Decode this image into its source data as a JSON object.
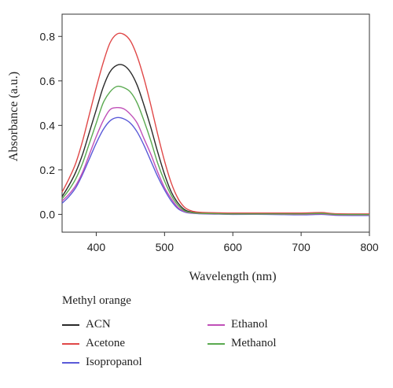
{
  "chart_data": {
    "type": "line",
    "title": "",
    "xlabel": "Wavelength (nm)",
    "ylabel": "Absorbance (a.u.)",
    "xlim": [
      350,
      800
    ],
    "ylim": [
      -0.08,
      0.9
    ],
    "xticks": [
      "400",
      "500",
      "600",
      "700",
      "800"
    ],
    "yticks": [
      "0.0",
      "0.2",
      "0.4",
      "0.6",
      "0.8"
    ],
    "grid": false,
    "legend": {
      "title": "Methyl orange",
      "placement": "bottom"
    },
    "x": [
      350,
      360,
      370,
      380,
      390,
      400,
      410,
      420,
      430,
      440,
      450,
      460,
      470,
      480,
      490,
      500,
      510,
      520,
      530,
      540,
      550,
      560,
      580,
      600,
      650,
      700,
      730,
      750,
      800
    ],
    "series": [
      {
        "name": "ACN",
        "color": "#2a2a2a",
        "values": [
          0.08,
          0.13,
          0.19,
          0.27,
          0.37,
          0.47,
          0.57,
          0.64,
          0.67,
          0.67,
          0.64,
          0.58,
          0.49,
          0.39,
          0.28,
          0.18,
          0.1,
          0.05,
          0.02,
          0.01,
          0.008,
          0.006,
          0.005,
          0.004,
          0.004,
          0.004,
          0.006,
          0.001,
          0.0
        ]
      },
      {
        "name": "Acetone",
        "color": "#e04848",
        "values": [
          0.1,
          0.16,
          0.23,
          0.33,
          0.45,
          0.57,
          0.68,
          0.77,
          0.81,
          0.81,
          0.78,
          0.71,
          0.61,
          0.49,
          0.36,
          0.24,
          0.14,
          0.07,
          0.03,
          0.015,
          0.01,
          0.008,
          0.007,
          0.006,
          0.006,
          0.006,
          0.008,
          0.003,
          0.002
        ]
      },
      {
        "name": "Isopropanol",
        "color": "#5a5ad8",
        "values": [
          0.05,
          0.08,
          0.12,
          0.18,
          0.25,
          0.32,
          0.38,
          0.42,
          0.435,
          0.43,
          0.41,
          0.37,
          0.31,
          0.24,
          0.17,
          0.11,
          0.06,
          0.025,
          0.01,
          0.005,
          0.003,
          0.002,
          0.001,
          0.0,
          0.0,
          -0.002,
          0.0,
          -0.004,
          -0.005
        ]
      },
      {
        "name": "Ethanol",
        "color": "#c050b8",
        "values": [
          0.06,
          0.09,
          0.13,
          0.19,
          0.27,
          0.35,
          0.42,
          0.47,
          0.48,
          0.475,
          0.45,
          0.41,
          0.34,
          0.27,
          0.19,
          0.12,
          0.07,
          0.03,
          0.012,
          0.006,
          0.004,
          0.003,
          0.002,
          0.001,
          0.001,
          0.0,
          0.002,
          -0.002,
          -0.003
        ]
      },
      {
        "name": "Methanol",
        "color": "#5aaa50",
        "values": [
          0.07,
          0.11,
          0.16,
          0.23,
          0.32,
          0.41,
          0.5,
          0.55,
          0.575,
          0.57,
          0.55,
          0.5,
          0.42,
          0.33,
          0.23,
          0.15,
          0.085,
          0.04,
          0.015,
          0.008,
          0.005,
          0.004,
          0.003,
          0.002,
          0.002,
          0.002,
          0.004,
          0.0,
          -0.001
        ]
      }
    ]
  }
}
